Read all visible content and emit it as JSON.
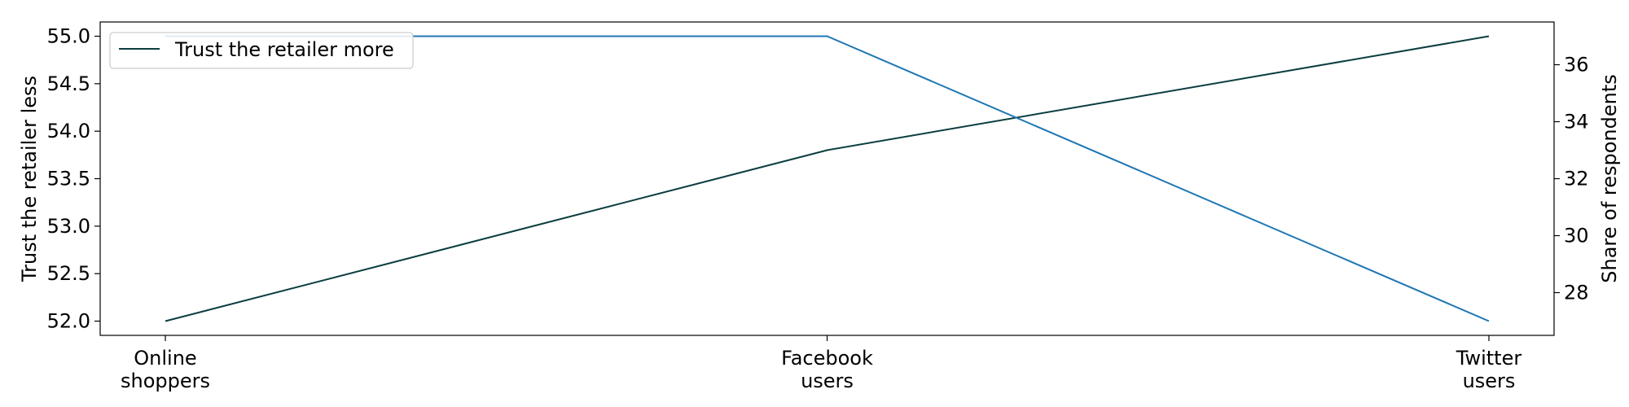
{
  "chart_data": {
    "type": "line",
    "categories": [
      [
        "Online",
        "shoppers"
      ],
      [
        "Facebook",
        "users"
      ],
      [
        "Twitter",
        "users"
      ]
    ],
    "series": [
      {
        "name": "Trust the retailer more",
        "axis": "left",
        "values": [
          52.0,
          53.8,
          55.0
        ],
        "color": "#0b3d3f"
      },
      {
        "name": "",
        "axis": "right",
        "values": [
          37,
          37,
          27
        ],
        "color": "#1f77b4"
      }
    ],
    "ylabel_left": "Trust the retailer less",
    "ylabel_right": "Share of respondents",
    "ylim_left": [
      51.85,
      55.15
    ],
    "ylim_right": [
      26.5,
      37.5
    ],
    "yticks_left": [
      "52.0",
      "52.5",
      "53.0",
      "53.5",
      "54.0",
      "54.5",
      "55.0"
    ],
    "yticks_right": [
      "28",
      "30",
      "32",
      "34",
      "36"
    ],
    "legend_position": "top-left",
    "grid": false
  }
}
